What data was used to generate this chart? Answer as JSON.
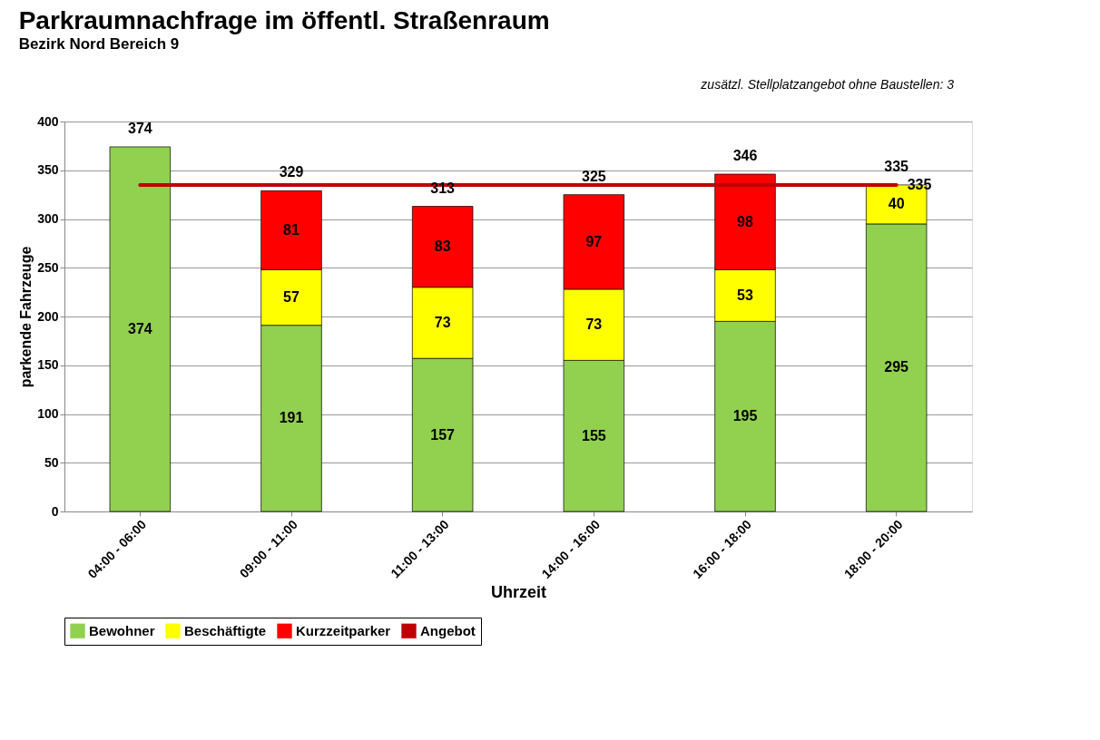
{
  "chart_data": {
    "type": "bar",
    "title": "Parkraumnachfrage im öffentl. Straßenraum",
    "subtitle": "Bezirk Nord  Bereich 9",
    "annotations": [
      "zusätzl. Stellplatzangebot ohne Baustellen:      3"
    ],
    "xlabel": "Uhrzeit",
    "ylabel": "parkende Fahrzeuge",
    "categories": [
      "04:00 - 06:00",
      "09:00 - 11:00",
      "11:00 - 13:00",
      "14:00 - 16:00",
      "16:00 - 18:00",
      "18:00 - 20:00"
    ],
    "stacked": true,
    "series": [
      {
        "name": "Bewohner",
        "color": "#92d050",
        "values": [
          374,
          191,
          157,
          155,
          195,
          295
        ]
      },
      {
        "name": "Beschäftigte",
        "color": "#ffff00",
        "values": [
          null,
          57,
          73,
          73,
          53,
          40
        ]
      },
      {
        "name": "Kurzzeitparker",
        "color": "#ff0000",
        "values": [
          null,
          81,
          83,
          97,
          98,
          null
        ]
      },
      {
        "name": "Angebot",
        "type": "line",
        "color": "#c00000",
        "values": [
          335,
          335,
          335,
          335,
          335,
          335
        ],
        "value_labels": [
          null,
          null,
          null,
          null,
          null,
          "335"
        ]
      }
    ],
    "data_labels": true,
    "totals": [
      "374",
      "329",
      "313",
      "325",
      "346",
      "335"
    ],
    "ylim": [
      0,
      400
    ],
    "yticks": [
      0,
      50,
      100,
      150,
      200,
      250,
      300,
      350,
      400
    ],
    "grid": "y",
    "legend": "bottom"
  }
}
